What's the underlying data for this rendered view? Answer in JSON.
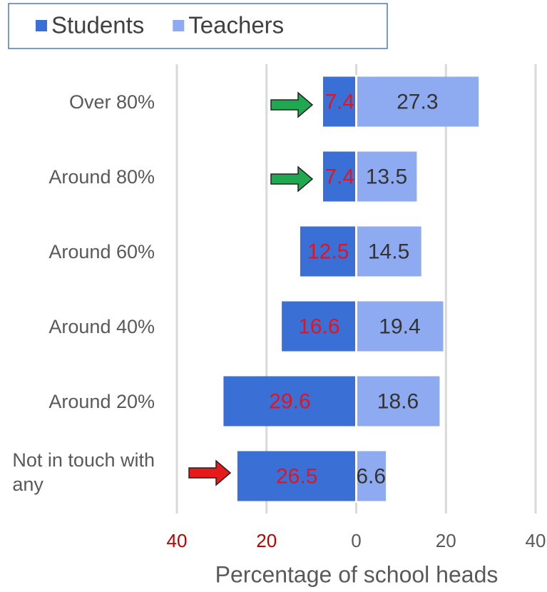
{
  "chart_data": {
    "type": "butterfly_bar",
    "categories": [
      "Over 80%",
      "Around 80%",
      "Around 60%",
      "Around 40%",
      "Around 20%",
      "Not in touch with\nany"
    ],
    "series": [
      {
        "name": "Students",
        "color": "#3a70d6",
        "label_color": "#e3141e",
        "values": [
          -7.4,
          -7.4,
          -12.5,
          -16.6,
          -29.6,
          -26.5
        ],
        "value_labels": [
          "7.4",
          "7.4",
          "12.5",
          "16.6",
          "29.6",
          "26.5"
        ]
      },
      {
        "name": "Teachers",
        "color": "#8eabf2",
        "label_color": "#333333",
        "values": [
          27.3,
          13.5,
          14.5,
          19.4,
          18.6,
          6.6
        ]
      }
    ],
    "xlim": [
      -40,
      40
    ],
    "xticks": [
      {
        "value": -40,
        "label": "40"
      },
      {
        "value": -20,
        "label": "20"
      },
      0,
      20,
      40
    ],
    "xtick_label_colors": [
      "#c00000",
      "#c00000",
      "#595959",
      "#595959",
      "#595959"
    ],
    "xlabel": "Percentage of school heads",
    "grid": true
  }
}
